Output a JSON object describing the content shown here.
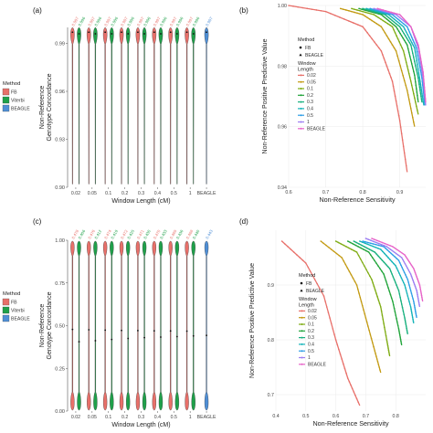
{
  "chart_data": [
    {
      "panel": "(a)",
      "type": "violin",
      "ylabel_lines": [
        "Non-Reference",
        "Genotype Concordance"
      ],
      "xlabel": "Window Length (cM)",
      "ylim": [
        0.9,
        1.0
      ],
      "yticks": [
        "0.90",
        "0.93",
        "0.96",
        "0.99"
      ],
      "categories": [
        "0.02",
        "0.05",
        "0.1",
        "0.2",
        "0.3",
        "0.4",
        "0.5",
        "1",
        "BEAGLE"
      ],
      "legend": {
        "title": "Method",
        "entries": [
          "FB",
          "Viterbi",
          "BEAGLE"
        ]
      },
      "series": [
        {
          "name": "FB",
          "values": [
            0.997,
            0.997,
            0.997,
            0.997,
            0.997,
            0.997,
            0.997,
            0.997
          ],
          "labels": [
            "0.997",
            "0.997",
            "0.997",
            "0.997",
            "0.997",
            "0.997",
            "0.997",
            "0.997"
          ]
        },
        {
          "name": "Viterbi",
          "values": [
            0.996,
            0.996,
            0.996,
            0.996,
            0.996,
            0.996,
            0.996,
            0.996
          ],
          "labels": [
            "0.996",
            "0.996",
            "0.996",
            "0.996",
            "0.996",
            "0.996",
            "0.996",
            "0.996"
          ]
        },
        {
          "name": "BEAGLE",
          "values": [
            0.997
          ],
          "labels": [
            "0.997"
          ]
        }
      ]
    },
    {
      "panel": "(b)",
      "type": "line",
      "xlabel": "Non-Reference Sensitivity",
      "ylabel": "Non-Reference Positive Predictive Value",
      "xlim": [
        0.6,
        0.97
      ],
      "ylim": [
        0.94,
        1.0
      ],
      "xticks": [
        "0.6",
        "0.7",
        "0.8",
        "0.9"
      ],
      "yticks": [
        "0.94",
        "0.96",
        "0.98",
        "1.00"
      ],
      "legend": {
        "method_title": "Method",
        "method_entries": [
          "FB",
          "BEAGLE"
        ],
        "window_title_lines": [
          "Window",
          "Length"
        ],
        "window_entries": [
          "0.02",
          "0.05",
          "0.1",
          "0.2",
          "0.3",
          "0.4",
          "0.5",
          "1",
          "BEAGLE"
        ]
      },
      "series": [
        {
          "name": "0.02",
          "points": [
            [
              0.6,
              1.0
            ],
            [
              0.7,
              0.998
            ],
            [
              0.8,
              0.993
            ],
            [
              0.85,
              0.985
            ],
            [
              0.88,
              0.975
            ],
            [
              0.9,
              0.962
            ],
            [
              0.92,
              0.945
            ]
          ]
        },
        {
          "name": "0.05",
          "points": [
            [
              0.74,
              0.999
            ],
            [
              0.8,
              0.997
            ],
            [
              0.85,
              0.993
            ],
            [
              0.89,
              0.985
            ],
            [
              0.92,
              0.972
            ],
            [
              0.94,
              0.96
            ]
          ]
        },
        {
          "name": "0.1",
          "points": [
            [
              0.77,
              0.999
            ],
            [
              0.83,
              0.997
            ],
            [
              0.88,
              0.993
            ],
            [
              0.91,
              0.985
            ],
            [
              0.93,
              0.975
            ],
            [
              0.95,
              0.964
            ]
          ]
        },
        {
          "name": "0.2",
          "points": [
            [
              0.79,
              0.999
            ],
            [
              0.85,
              0.997
            ],
            [
              0.89,
              0.993
            ],
            [
              0.92,
              0.987
            ],
            [
              0.94,
              0.977
            ],
            [
              0.95,
              0.968
            ]
          ]
        },
        {
          "name": "0.3",
          "points": [
            [
              0.8,
              0.999
            ],
            [
              0.86,
              0.997
            ],
            [
              0.9,
              0.993
            ],
            [
              0.93,
              0.987
            ],
            [
              0.95,
              0.976
            ],
            [
              0.96,
              0.968
            ]
          ]
        },
        {
          "name": "0.4",
          "points": [
            [
              0.81,
              0.999
            ],
            [
              0.87,
              0.997
            ],
            [
              0.91,
              0.993
            ],
            [
              0.94,
              0.986
            ],
            [
              0.955,
              0.975
            ],
            [
              0.965,
              0.967
            ]
          ]
        },
        {
          "name": "0.5",
          "points": [
            [
              0.82,
              0.999
            ],
            [
              0.88,
              0.997
            ],
            [
              0.92,
              0.993
            ],
            [
              0.945,
              0.986
            ],
            [
              0.96,
              0.976
            ],
            [
              0.968,
              0.967
            ]
          ]
        },
        {
          "name": "1",
          "points": [
            [
              0.83,
              0.999
            ],
            [
              0.89,
              0.997
            ],
            [
              0.93,
              0.993
            ],
            [
              0.95,
              0.986
            ],
            [
              0.963,
              0.976
            ],
            [
              0.97,
              0.967
            ]
          ]
        },
        {
          "name": "BEAGLE",
          "points": [
            [
              0.84,
              0.999
            ],
            [
              0.9,
              0.997
            ],
            [
              0.93,
              0.993
            ],
            [
              0.95,
              0.987
            ],
            [
              0.963,
              0.978
            ],
            [
              0.97,
              0.968
            ]
          ]
        }
      ]
    },
    {
      "panel": "(c)",
      "type": "violin",
      "ylabel_lines": [
        "Non-Reference",
        "Genotype Concordance"
      ],
      "xlabel": "Window Length (cM)",
      "ylim": [
        0.0,
        1.0
      ],
      "yticks": [
        "0.00",
        "0.25",
        "0.50",
        "0.75",
        "1.00"
      ],
      "categories": [
        "0.02",
        "0.05",
        "0.1",
        "0.2",
        "0.3",
        "0.4",
        "0.5",
        "1",
        "BEAGLE"
      ],
      "legend": {
        "title": "Method",
        "entries": [
          "FB",
          "Viterbi",
          "BEAGLE"
        ]
      },
      "series": [
        {
          "name": "FB",
          "values": [
            0.478,
            0.476,
            0.474,
            0.472,
            0.471,
            0.47,
            0.469,
            0.468
          ],
          "labels": [
            "0.478",
            "0.476",
            "0.474",
            "0.472",
            "0.471",
            "0.470",
            "0.469",
            "0.468"
          ]
        },
        {
          "name": "Viterbi",
          "values": [
            0.406,
            0.412,
            0.419,
            0.425,
            0.43,
            0.433,
            0.436,
            0.44
          ],
          "labels": [
            "0.406",
            "0.412",
            "0.419",
            "0.425",
            "0.430",
            "0.433",
            "0.436",
            "0.440"
          ]
        },
        {
          "name": "BEAGLE",
          "values": [
            0.443
          ],
          "labels": [
            "0.443"
          ]
        }
      ]
    },
    {
      "panel": "(d)",
      "type": "line",
      "xlabel": "Non-Reference Sensitivity",
      "ylabel": "Non-Reference Positive Predictive Value",
      "xlim": [
        0.4,
        0.9
      ],
      "ylim": [
        0.67,
        1.0
      ],
      "xticks": [
        "0.4",
        "0.5",
        "0.6",
        "0.7",
        "0.8"
      ],
      "yticks": [
        "0.7",
        "0.8",
        "0.9"
      ],
      "legend": {
        "method_title": "Method",
        "method_entries": [
          "FB",
          "BEAGLE"
        ],
        "window_title_lines": [
          "Window",
          "Length"
        ],
        "window_entries": [
          "0.02",
          "0.05",
          "0.1",
          "0.2",
          "0.3",
          "0.4",
          "0.5",
          "1",
          "BEAGLE"
        ]
      },
      "series": [
        {
          "name": "0.02",
          "points": [
            [
              0.42,
              0.98
            ],
            [
              0.5,
              0.94
            ],
            [
              0.56,
              0.88
            ],
            [
              0.6,
              0.8
            ],
            [
              0.64,
              0.73
            ],
            [
              0.68,
              0.68
            ]
          ]
        },
        {
          "name": "0.05",
          "points": [
            [
              0.55,
              0.98
            ],
            [
              0.62,
              0.95
            ],
            [
              0.67,
              0.9
            ],
            [
              0.7,
              0.84
            ],
            [
              0.73,
              0.78
            ],
            [
              0.75,
              0.74
            ]
          ]
        },
        {
          "name": "0.1",
          "points": [
            [
              0.6,
              0.98
            ],
            [
              0.67,
              0.96
            ],
            [
              0.72,
              0.91
            ],
            [
              0.75,
              0.86
            ],
            [
              0.77,
              0.8
            ],
            [
              0.78,
              0.77
            ]
          ]
        },
        {
          "name": "0.2",
          "points": [
            [
              0.64,
              0.98
            ],
            [
              0.71,
              0.96
            ],
            [
              0.76,
              0.92
            ],
            [
              0.79,
              0.87
            ],
            [
              0.81,
              0.82
            ],
            [
              0.82,
              0.79
            ]
          ]
        },
        {
          "name": "0.3",
          "points": [
            [
              0.66,
              0.98
            ],
            [
              0.73,
              0.96
            ],
            [
              0.78,
              0.93
            ],
            [
              0.81,
              0.89
            ],
            [
              0.83,
              0.84
            ],
            [
              0.84,
              0.81
            ]
          ]
        },
        {
          "name": "0.4",
          "points": [
            [
              0.68,
              0.98
            ],
            [
              0.75,
              0.965
            ],
            [
              0.8,
              0.935
            ],
            [
              0.83,
              0.9
            ],
            [
              0.85,
              0.86
            ],
            [
              0.86,
              0.83
            ]
          ]
        },
        {
          "name": "0.5",
          "points": [
            [
              0.69,
              0.98
            ],
            [
              0.76,
              0.97
            ],
            [
              0.81,
              0.945
            ],
            [
              0.84,
              0.91
            ],
            [
              0.86,
              0.87
            ],
            [
              0.87,
              0.84
            ]
          ]
        },
        {
          "name": "1",
          "points": [
            [
              0.7,
              0.985
            ],
            [
              0.77,
              0.97
            ],
            [
              0.82,
              0.95
            ],
            [
              0.85,
              0.92
            ],
            [
              0.87,
              0.89
            ],
            [
              0.88,
              0.86
            ]
          ]
        },
        {
          "name": "BEAGLE",
          "points": [
            [
              0.72,
              0.985
            ],
            [
              0.79,
              0.97
            ],
            [
              0.83,
              0.955
            ],
            [
              0.86,
              0.93
            ],
            [
              0.88,
              0.9
            ],
            [
              0.89,
              0.87
            ]
          ]
        }
      ]
    }
  ],
  "colors": {
    "FB": "#e8706a",
    "Viterbi": "#1fa04a",
    "BEAGLE_method": "#4f8fd6",
    "window": {
      "0.02": "#e8706a",
      "0.05": "#c39a12",
      "0.1": "#7fac14",
      "0.2": "#21a43a",
      "0.3": "#18b07e",
      "0.4": "#14b3b8",
      "0.5": "#2c9de6",
      "1": "#9c7df2",
      "BEAGLE": "#e763c8"
    }
  }
}
